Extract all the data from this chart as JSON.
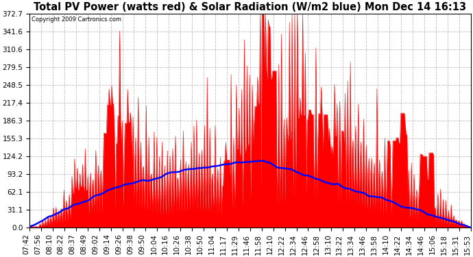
{
  "title": "Total PV Power (watts red) & Solar Radiation (W/m2 blue) Mon Dec 14 16:13",
  "copyright": "Copyright 2009 Cartronics.com",
  "background_color": "#ffffff",
  "plot_bg_color": "#ffffff",
  "grid_color": "#bbbbbb",
  "grid_style": "--",
  "pv_color": "red",
  "solar_color": "blue",
  "ylim": [
    0.0,
    372.7
  ],
  "yticks": [
    0.0,
    31.1,
    62.1,
    93.2,
    124.2,
    155.3,
    186.3,
    217.4,
    248.5,
    279.5,
    310.6,
    341.6,
    372.7
  ],
  "xlabel_rotation": 90,
  "title_fontsize": 10.5,
  "tick_fontsize": 7.5,
  "x_labels": [
    "07:42",
    "07:56",
    "08:10",
    "08:22",
    "08:37",
    "08:49",
    "09:02",
    "09:14",
    "09:26",
    "09:38",
    "09:50",
    "10:04",
    "10:16",
    "10:26",
    "10:38",
    "10:50",
    "11:04",
    "11:17",
    "11:29",
    "11:46",
    "11:58",
    "12:10",
    "12:22",
    "12:34",
    "12:46",
    "12:58",
    "13:10",
    "13:22",
    "13:34",
    "13:46",
    "13:58",
    "14:10",
    "14:22",
    "14:34",
    "14:46",
    "15:06",
    "15:18",
    "15:31",
    "15:53"
  ]
}
